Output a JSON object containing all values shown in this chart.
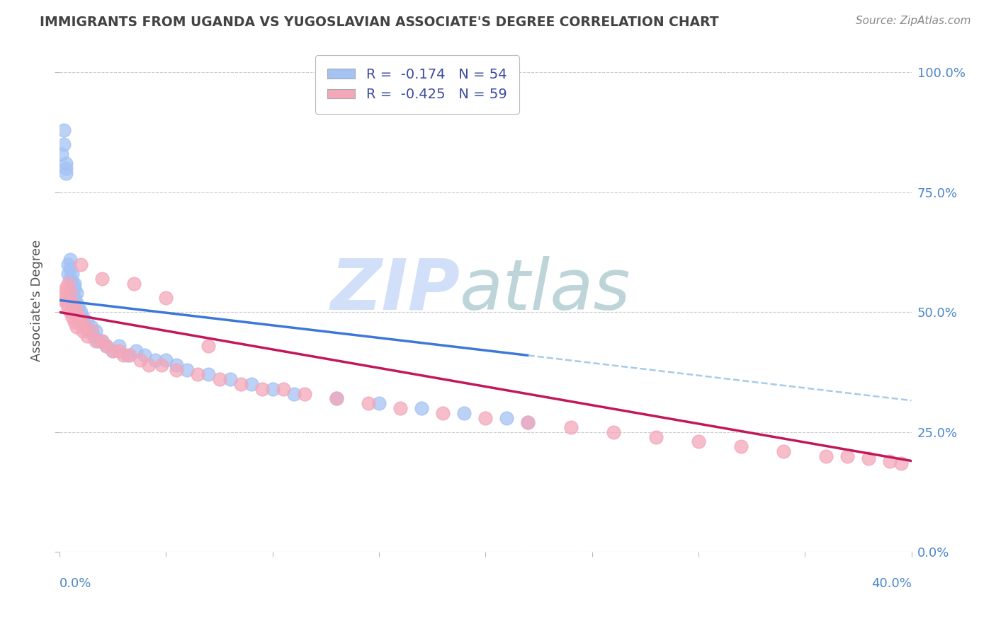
{
  "title": "IMMIGRANTS FROM UGANDA VS YUGOSLAVIAN ASSOCIATE'S DEGREE CORRELATION CHART",
  "source": "Source: ZipAtlas.com",
  "ylabel": "Associate's Degree",
  "legend_r1": "R =  -0.174   N = 54",
  "legend_r2": "R =  -0.425   N = 59",
  "color_blue": "#a4c2f4",
  "color_pink": "#f4a7b9",
  "color_blue_line": "#3c78d8",
  "color_pink_line": "#c2185b",
  "color_dashed": "#9fc5e8",
  "color_axis_label": "#4a86c8",
  "watermark_zip": "#c9daf8",
  "watermark_atlas": "#b6d7e8",
  "grid_color": "#cccccc",
  "background_color": "#ffffff",
  "title_color": "#434343",
  "source_color": "#888888",
  "legend_text_color": "#3c4a9e",
  "xlim": [
    0.0,
    0.4
  ],
  "ylim": [
    0.0,
    1.05
  ],
  "xticks_pos": [
    0.0,
    0.05,
    0.1,
    0.15,
    0.2,
    0.25,
    0.3,
    0.35,
    0.4
  ],
  "yticks_pos": [
    0.0,
    0.25,
    0.5,
    0.75,
    1.0
  ],
  "right_ylabels": [
    "0.0%",
    "25.0%",
    "50.0%",
    "75.0%",
    "100.0%"
  ],
  "uganda_x": [
    0.001,
    0.002,
    0.002,
    0.003,
    0.003,
    0.003,
    0.004,
    0.004,
    0.005,
    0.005,
    0.005,
    0.006,
    0.006,
    0.006,
    0.007,
    0.007,
    0.007,
    0.008,
    0.008,
    0.009,
    0.009,
    0.01,
    0.01,
    0.011,
    0.011,
    0.012,
    0.013,
    0.014,
    0.015,
    0.016,
    0.017,
    0.018,
    0.02,
    0.022,
    0.025,
    0.028,
    0.032,
    0.036,
    0.04,
    0.045,
    0.05,
    0.055,
    0.06,
    0.07,
    0.08,
    0.09,
    0.1,
    0.11,
    0.13,
    0.15,
    0.17,
    0.19,
    0.21,
    0.22
  ],
  "uganda_y": [
    0.83,
    0.85,
    0.88,
    0.8,
    0.81,
    0.79,
    0.58,
    0.6,
    0.59,
    0.61,
    0.57,
    0.56,
    0.54,
    0.58,
    0.55,
    0.53,
    0.56,
    0.52,
    0.54,
    0.51,
    0.5,
    0.49,
    0.5,
    0.48,
    0.49,
    0.47,
    0.48,
    0.46,
    0.47,
    0.45,
    0.46,
    0.44,
    0.44,
    0.43,
    0.42,
    0.43,
    0.41,
    0.42,
    0.41,
    0.4,
    0.4,
    0.39,
    0.38,
    0.37,
    0.36,
    0.35,
    0.34,
    0.33,
    0.32,
    0.31,
    0.3,
    0.29,
    0.28,
    0.27
  ],
  "yugoslav_x": [
    0.001,
    0.002,
    0.003,
    0.003,
    0.004,
    0.004,
    0.005,
    0.005,
    0.006,
    0.006,
    0.007,
    0.007,
    0.008,
    0.008,
    0.009,
    0.01,
    0.011,
    0.012,
    0.013,
    0.015,
    0.017,
    0.02,
    0.022,
    0.025,
    0.028,
    0.03,
    0.033,
    0.038,
    0.042,
    0.048,
    0.055,
    0.065,
    0.075,
    0.085,
    0.095,
    0.105,
    0.115,
    0.13,
    0.145,
    0.16,
    0.18,
    0.2,
    0.22,
    0.24,
    0.26,
    0.28,
    0.3,
    0.32,
    0.34,
    0.36,
    0.37,
    0.38,
    0.39,
    0.395,
    0.01,
    0.02,
    0.035,
    0.05,
    0.07
  ],
  "yugoslav_y": [
    0.53,
    0.54,
    0.55,
    0.52,
    0.56,
    0.51,
    0.54,
    0.5,
    0.52,
    0.49,
    0.51,
    0.48,
    0.5,
    0.47,
    0.49,
    0.48,
    0.46,
    0.47,
    0.45,
    0.46,
    0.44,
    0.44,
    0.43,
    0.42,
    0.42,
    0.41,
    0.41,
    0.4,
    0.39,
    0.39,
    0.38,
    0.37,
    0.36,
    0.35,
    0.34,
    0.34,
    0.33,
    0.32,
    0.31,
    0.3,
    0.29,
    0.28,
    0.27,
    0.26,
    0.25,
    0.24,
    0.23,
    0.22,
    0.21,
    0.2,
    0.2,
    0.195,
    0.19,
    0.185,
    0.6,
    0.57,
    0.56,
    0.53,
    0.43
  ]
}
